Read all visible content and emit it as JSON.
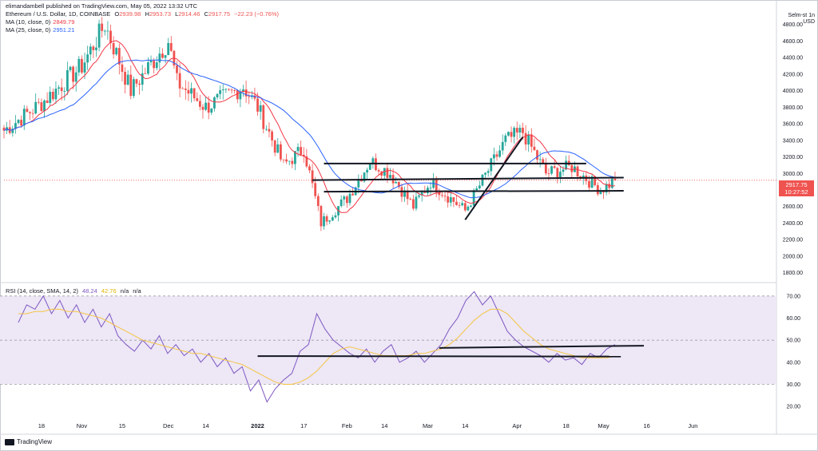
{
  "header": {
    "published": "elimandambell published on TradingView.com, May 05, 2022 13:32 UTC",
    "symbol": "Ethereum / U.S. Dollar, 1D, COINBASE",
    "ohlc": {
      "o_label": "O",
      "o": "2939.98",
      "h_label": "H",
      "h": "2953.73",
      "l_label": "L",
      "l": "2914.46",
      "c_label": "C",
      "c": "2917.75",
      "change": "−22.23 (−0.76%)"
    },
    "ma10": {
      "label": "MA (10, close, 0)",
      "value": "2849.79"
    },
    "ma25": {
      "label": "MA (25, close, 0)",
      "value": "2951.21"
    },
    "rsi": {
      "label": "RSI (14, close, SMA, 14, 2)",
      "value": "48.24",
      "sma": "42.76",
      "na1": "n/a",
      "na2": "n/a"
    }
  },
  "axis_unit": {
    "top": "Selm-st 1n",
    "bottom": "USD"
  },
  "last_price": {
    "price": "2917.75",
    "countdown": "10:27:52"
  },
  "price_ticks": [
    "4800.00",
    "4600.00",
    "4400.00",
    "4200.00",
    "4000.00",
    "3800.00",
    "3600.00",
    "3400.00",
    "3200.00",
    "3000.00",
    "2800.00",
    "2600.00",
    "2400.00",
    "2200.00",
    "2000.00",
    "1800.00"
  ],
  "rsi_ticks": [
    "70.00",
    "60.00",
    "50.00",
    "40.00",
    "30.00",
    "20.00"
  ],
  "time_ticks": [
    "18",
    "Nov",
    "15",
    "Dec",
    "14",
    "2022",
    "17",
    "Feb",
    "14",
    "Mar",
    "14",
    "Apr",
    "18",
    "May",
    "16",
    "Jun"
  ],
  "logo_text": "TradingView",
  "colors": {
    "up": "#26a69a",
    "down": "#ef5350",
    "ma10": "#f23645",
    "ma25": "#2962ff",
    "rsi": "#7e57c2",
    "rsi_sma": "#f5c542",
    "rsi_band": "#ede7f6",
    "trendline": "#131722",
    "text": "#131722"
  },
  "chart_data": [
    {
      "type": "candlestick",
      "title": "Ethereum / U.S. Dollar, 1D, COINBASE",
      "ylim": [
        1700,
        5000
      ],
      "y_ticks": [
        1800,
        2000,
        2200,
        2400,
        2600,
        2800,
        3000,
        3200,
        3400,
        3600,
        3800,
        4000,
        4200,
        4400,
        4600,
        4800
      ],
      "x_ticks": [
        "18",
        "Nov",
        "15",
        "Dec",
        "14",
        "2022",
        "17",
        "Feb",
        "14",
        "Mar",
        "14",
        "Apr",
        "18",
        "May",
        "16",
        "Jun"
      ],
      "x_range": [
        "2021-10-05",
        "2022-06-30"
      ],
      "series": [
        {
          "name": "Ethereum / U.S. Dollar",
          "key_closes": [
            {
              "date": "2021-10-05",
              "close": 3520
            },
            {
              "date": "2021-10-18",
              "close": 3850
            },
            {
              "date": "2021-11-01",
              "close": 4300
            },
            {
              "date": "2021-11-09",
              "close": 4800
            },
            {
              "date": "2021-11-18",
              "close": 4000
            },
            {
              "date": "2021-12-01",
              "close": 4600
            },
            {
              "date": "2021-12-04",
              "close": 4100
            },
            {
              "date": "2021-12-14",
              "close": 3800
            },
            {
              "date": "2021-12-27",
              "close": 4050
            },
            {
              "date": "2022-01-01",
              "close": 3800
            },
            {
              "date": "2022-01-10",
              "close": 3100
            },
            {
              "date": "2022-01-17",
              "close": 3300
            },
            {
              "date": "2022-01-23",
              "close": 2400
            },
            {
              "date": "2022-02-01",
              "close": 2700
            },
            {
              "date": "2022-02-09",
              "close": 3150
            },
            {
              "date": "2022-02-16",
              "close": 3000
            },
            {
              "date": "2022-02-24",
              "close": 2600
            },
            {
              "date": "2022-03-02",
              "close": 2900
            },
            {
              "date": "2022-03-14",
              "close": 2550
            },
            {
              "date": "2022-03-28",
              "close": 3400
            },
            {
              "date": "2022-04-03",
              "close": 3500
            },
            {
              "date": "2022-04-11",
              "close": 3000
            },
            {
              "date": "2022-04-20",
              "close": 3080
            },
            {
              "date": "2022-04-30",
              "close": 2800
            },
            {
              "date": "2022-05-05",
              "close": 2917.75
            }
          ]
        },
        {
          "name": "MA (10, close, 0)",
          "last": 2849.79
        },
        {
          "name": "MA (25, close, 0)",
          "last": 2951.21
        }
      ],
      "last_price": 2917.75
    },
    {
      "type": "line",
      "title": "RSI (14, close, SMA, 14, 2)",
      "ylim": [
        15,
        75
      ],
      "y_ticks": [
        20,
        30,
        40,
        50,
        60,
        70
      ],
      "bands": [
        30,
        50,
        70
      ],
      "series": [
        {
          "name": "RSI",
          "last": 48.24,
          "values": [
            58,
            66,
            64,
            70,
            62,
            68,
            60,
            66,
            58,
            64,
            56,
            62,
            52,
            48,
            45,
            50,
            46,
            52,
            44,
            48,
            43,
            46,
            40,
            44,
            38,
            42,
            35,
            38,
            27,
            32,
            22,
            28,
            32,
            35,
            45,
            48,
            62,
            55,
            50,
            47,
            44,
            42,
            46,
            40,
            45,
            48,
            40,
            42,
            45,
            40,
            44,
            48,
            55,
            60,
            68,
            72,
            66,
            70,
            62,
            54,
            50,
            47,
            45,
            43,
            40,
            44,
            41,
            42,
            39,
            44,
            42,
            46,
            48
          ]
        },
        {
          "name": "RSI SMA",
          "last": 42.76,
          "values": [
            62,
            62,
            63,
            63,
            64,
            64,
            63,
            63,
            62,
            61,
            60,
            58,
            56,
            54,
            52,
            50,
            49,
            48,
            47,
            46,
            45,
            44,
            44,
            43,
            42,
            41,
            40,
            39,
            37,
            35,
            33,
            31,
            30,
            30,
            31,
            33,
            36,
            40,
            44,
            46,
            47,
            46,
            45,
            44,
            43,
            43,
            43,
            43,
            44,
            44,
            45,
            46,
            48,
            51,
            55,
            59,
            62,
            64,
            64,
            62,
            58,
            54,
            51,
            48,
            46,
            45,
            44,
            43,
            42,
            42,
            42,
            42,
            42.76
          ]
        }
      ]
    }
  ]
}
